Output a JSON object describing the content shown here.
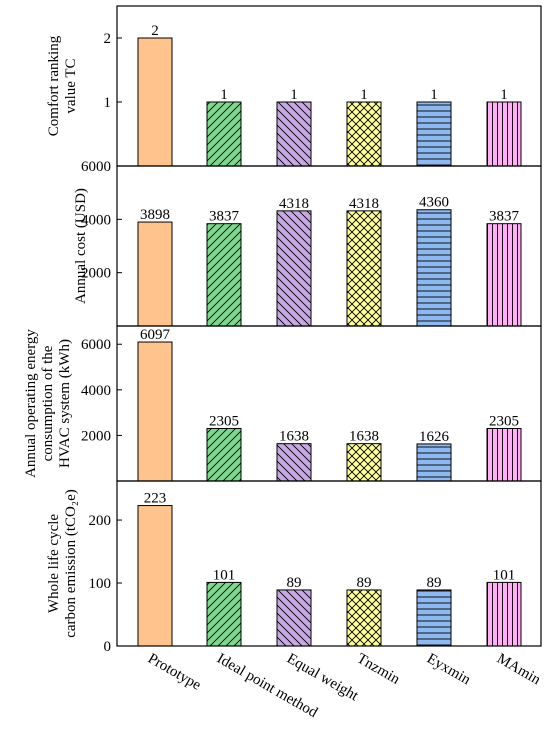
{
  "chart_data": {
    "type": "bar",
    "categories": [
      "Prototype",
      "Ideal point method",
      "Equal weight",
      "Tnzmin",
      "Eyxmin",
      "MAmin"
    ],
    "bar_colors": [
      "#FFC48E",
      "#7BD88F",
      "#C7A8E4",
      "#FFFF99",
      "#8DB8F0",
      "#FFB0F4"
    ],
    "patterns": [
      "none",
      "diagonal-forward",
      "diagonal-backward",
      "crosshatch",
      "horizontal",
      "vertical"
    ],
    "panels": [
      {
        "ylabel_lines": [
          "Comfort ranking",
          "value TC"
        ],
        "values": [
          2,
          1,
          1,
          1,
          1,
          1
        ],
        "labels": [
          "2",
          "1",
          "1",
          "1",
          "1",
          "1"
        ],
        "ylim": [
          0,
          2.5
        ],
        "ticks": [
          1,
          2
        ],
        "tick_labels": [
          "1",
          "2"
        ]
      },
      {
        "ylabel_lines": [
          "Annual cost (USD)"
        ],
        "values": [
          3898,
          3837,
          4318,
          4318,
          4360,
          3837
        ],
        "labels": [
          "3898",
          "3837",
          "4318",
          "4318",
          "4360",
          "3837"
        ],
        "ylim": [
          0,
          6000
        ],
        "ticks": [
          2000,
          4000,
          6000
        ],
        "tick_labels": [
          "2000",
          "4000",
          "6000"
        ]
      },
      {
        "ylabel_lines": [
          "Annual operating energy",
          "consumption of the",
          "HVAC system (kWh)"
        ],
        "values": [
          6097,
          2305,
          1638,
          1638,
          1626,
          2305
        ],
        "labels": [
          "6097",
          "2305",
          "1638",
          "1638",
          "1626",
          "2305"
        ],
        "ylim": [
          0,
          6800
        ],
        "ticks": [
          2000,
          4000,
          6000
        ],
        "tick_labels": [
          "2000",
          "4000",
          "6000"
        ]
      },
      {
        "ylabel_lines": [
          "Whole life cycle",
          "carbon emission (tCO₂e)"
        ],
        "values": [
          223,
          101,
          89,
          89,
          89,
          101
        ],
        "labels": [
          "223",
          "101",
          "89",
          "89",
          "89",
          "101"
        ],
        "ylim": [
          0,
          262
        ],
        "ticks": [
          0,
          100,
          200
        ],
        "tick_labels": [
          "0",
          "100",
          "200"
        ]
      }
    ]
  }
}
